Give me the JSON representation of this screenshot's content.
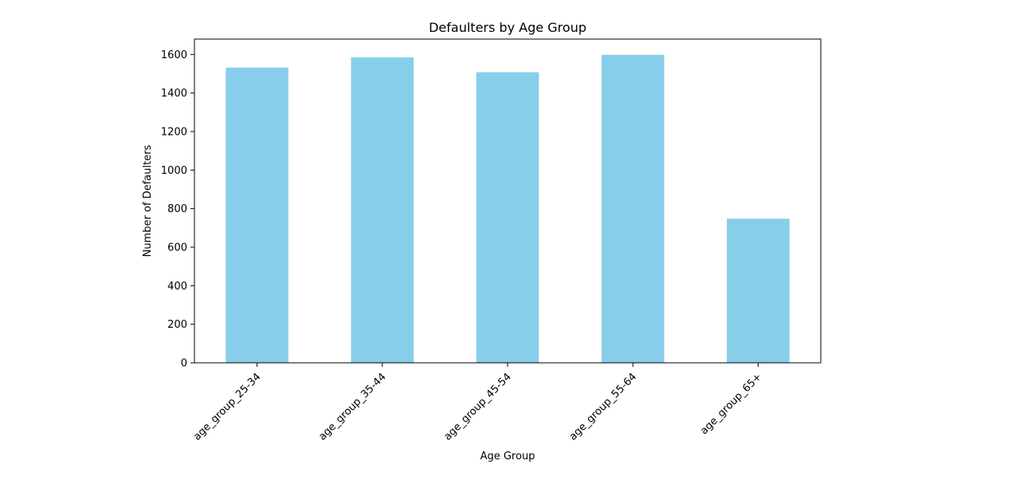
{
  "chart_data": {
    "type": "bar",
    "title": "Defaulters by Age Group",
    "xlabel": "Age Group",
    "ylabel": "Number of Defaulters",
    "categories": [
      "age_group_25-34",
      "age_group_35-44",
      "age_group_45-54",
      "age_group_55-64",
      "age_group_65+"
    ],
    "values": [
      1532,
      1585,
      1508,
      1598,
      748
    ],
    "ylim": [
      0,
      1680
    ],
    "yticks": [
      0,
      200,
      400,
      600,
      800,
      1000,
      1200,
      1400,
      1600
    ],
    "grid": false,
    "legend": "none",
    "bar_color": "#87ceeb"
  }
}
